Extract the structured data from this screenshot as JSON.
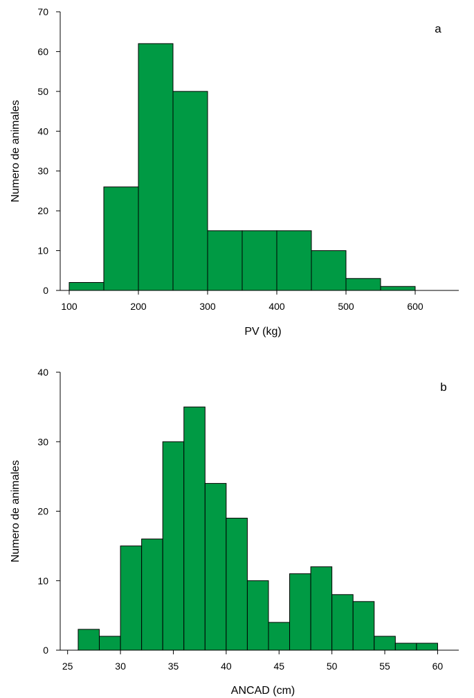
{
  "colors": {
    "bar_fill": "#009a44",
    "bar_stroke": "#000000",
    "axis": "#000000"
  },
  "chart_data": [
    {
      "type": "bar",
      "panel_label": "a",
      "xlabel": "PV (kg)",
      "ylabel": "Numero de animales",
      "bin_edges": [
        100,
        150,
        200,
        250,
        300,
        350,
        400,
        450,
        500,
        550,
        600
      ],
      "values": [
        2,
        26,
        62,
        50,
        15,
        15,
        15,
        10,
        3,
        1
      ],
      "xlim": [
        87,
        663
      ],
      "ylim": [
        0,
        70
      ],
      "x_ticks": [
        100,
        200,
        300,
        400,
        500,
        600
      ],
      "y_ticks": [
        0,
        10,
        20,
        30,
        40,
        50,
        60,
        70
      ],
      "grid": false
    },
    {
      "type": "bar",
      "panel_label": "b",
      "xlabel": "ANCAD (cm)",
      "ylabel": "Numero de animales",
      "bin_edges": [
        26,
        28,
        30,
        32,
        34,
        36,
        38,
        40,
        42,
        44,
        46,
        48,
        50,
        52,
        54,
        56,
        58,
        60
      ],
      "values": [
        3,
        2,
        15,
        16,
        30,
        35,
        24,
        19,
        10,
        4,
        11,
        12,
        8,
        7,
        2,
        1,
        1
      ],
      "xlim": [
        24.3,
        62
      ],
      "ylim": [
        0,
        40
      ],
      "x_ticks": [
        25,
        30,
        35,
        40,
        45,
        50,
        55,
        60
      ],
      "y_ticks": [
        0,
        10,
        20,
        30,
        40
      ],
      "grid": false
    }
  ]
}
